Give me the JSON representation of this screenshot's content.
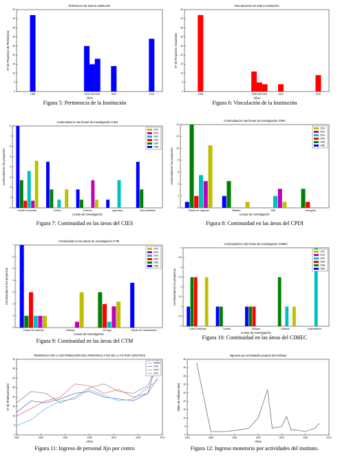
{
  "chart_data": [
    {
      "type": "bar",
      "title": "Pertinencia de toda la Institución",
      "xlabel": "Años",
      "ylabel": "Nº de Proyectos de Pertinencia",
      "caption": "Figura 5: Pertinencia de la Institución",
      "x": [
        1988,
        1998,
        1999,
        2000,
        2003,
        2010
      ],
      "values": [
        42,
        25,
        15,
        18,
        14,
        29
      ],
      "color": "#0000ff",
      "xlim": [
        1985,
        2012
      ],
      "xticks": [
        1988,
        1998,
        1999,
        2000,
        2003,
        2010
      ],
      "ylim": [
        0,
        45
      ],
      "yticks": [
        0,
        5,
        10,
        15,
        20,
        25,
        30,
        35,
        40,
        45
      ]
    },
    {
      "type": "bar",
      "title": "Vinculaciones de toda la Institución",
      "xlabel": "Años",
      "ylabel": "Nº de Proyectos Vinculados",
      "caption": "Figura 6: Vinculación de la Institución",
      "x": [
        1988,
        1998,
        1999,
        2000,
        2003,
        2010
      ],
      "values": [
        42,
        11,
        5,
        4,
        4,
        9
      ],
      "color": "#ff0000",
      "xlim": [
        1985,
        2012
      ],
      "xticks": [
        1988,
        1998,
        1999,
        2000,
        2003,
        2010
      ],
      "ylim": [
        0,
        45
      ],
      "yticks": [
        0,
        5,
        10,
        15,
        20,
        25,
        30,
        35,
        40,
        45
      ]
    },
    {
      "type": "bar",
      "title": "Continuidad en las lineas de investigación CIES",
      "xlabel": "Lineas de Investigación",
      "ylabel": "Continuidad en los proyectos",
      "caption": "Figura 7: Continuidad en las áreas del CIES",
      "categories": [
        "Estudio Económico",
        "Turismo",
        "Gerencia",
        "Agricultura",
        "Socio-ambiental"
      ],
      "legend": "upper right",
      "ylim": [
        0,
        8
      ],
      "yticks": [
        0,
        1,
        2,
        3,
        4,
        5,
        6,
        7,
        8
      ],
      "series": [
        {
          "name": "1988",
          "color": "#0000ff",
          "values": [
            8,
            4.5,
            1.8,
            0.8,
            4.5
          ]
        },
        {
          "name": "1998",
          "color": "#008000",
          "values": [
            2.7,
            1.8,
            0.8,
            0,
            1.8
          ]
        },
        {
          "name": "1999",
          "color": "#ff0000",
          "values": [
            0.7,
            0,
            0,
            0,
            0
          ]
        },
        {
          "name": "2000",
          "color": "#00bfbf",
          "values": [
            3.6,
            0.8,
            0,
            2.7,
            0
          ]
        },
        {
          "name": "2003",
          "color": "#bf00bf",
          "values": [
            0.7,
            0,
            2.7,
            0,
            0
          ]
        },
        {
          "name": "2010",
          "color": "#bfbf00",
          "values": [
            4.6,
            1.8,
            0.8,
            0,
            0
          ]
        }
      ]
    },
    {
      "type": "bar",
      "title": "Continuidad en las lineas de investigación CPDI",
      "xlabel": "Lineas de Investigación",
      "ylabel": "Continuidad en los proyectos",
      "caption": "Figura 8: Continuidad en las áreas del CPDI",
      "categories": [
        "Estudio de Imágenes",
        "Software",
        "Web",
        "Cartografía"
      ],
      "legend": "upper right",
      "ylim": [
        0,
        14
      ],
      "yticks": [
        0,
        2,
        4,
        6,
        8,
        10,
        12,
        14
      ],
      "series": [
        {
          "name": "1988",
          "color": "#0000ff",
          "values": [
            1,
            2,
            0,
            0
          ]
        },
        {
          "name": "1998",
          "color": "#008000",
          "values": [
            14,
            4.5,
            0,
            3.2
          ]
        },
        {
          "name": "1999",
          "color": "#ff0000",
          "values": [
            2,
            0,
            0,
            1
          ]
        },
        {
          "name": "2000",
          "color": "#00bfbf",
          "values": [
            5.5,
            0,
            2,
            0
          ]
        },
        {
          "name": "2003",
          "color": "#bf00bf",
          "values": [
            4.5,
            0,
            3.2,
            0
          ]
        },
        {
          "name": "2010",
          "color": "#bfbf00",
          "values": [
            10.5,
            1,
            1,
            0
          ]
        }
      ]
    },
    {
      "type": "bar",
      "title": "Continuidad en las lineas de investigación CTM",
      "xlabel": "Lineas de Investigación",
      "ylabel": "Continuidad en los proyectos",
      "caption": "Figura 9: Continuidad en las áreas del CTM",
      "categories": [
        "Estudio de Ambiente",
        "Software",
        "Ecología",
        "Estudio de Contaminación"
      ],
      "legend": "upper right",
      "ylim": [
        0,
        7
      ],
      "yticks": [
        0,
        1,
        2,
        3,
        4,
        5,
        6,
        7
      ],
      "series": [
        {
          "name": "1988",
          "color": "#0000ff",
          "values": [
            7,
            0,
            0,
            3.8
          ]
        },
        {
          "name": "1998",
          "color": "#008000",
          "values": [
            1,
            0,
            3,
            0
          ]
        },
        {
          "name": "1999",
          "color": "#ff0000",
          "values": [
            3,
            0,
            2,
            0
          ]
        },
        {
          "name": "2000",
          "color": "#00bfbf",
          "values": [
            1,
            0,
            0.5,
            0
          ]
        },
        {
          "name": "2003",
          "color": "#bf00bf",
          "values": [
            1,
            0.5,
            1.8,
            0
          ]
        },
        {
          "name": "2010",
          "color": "#bfbf00",
          "values": [
            1,
            3,
            2.2,
            0
          ]
        }
      ]
    },
    {
      "type": "bar",
      "title": "Continuidad en las lineas de investigación CIMEC",
      "xlabel": "Lineas de Investigación",
      "ylabel": "Continuidad en los proyectos",
      "caption": "Figura 10: Continuidad en las áreas del CIMEC",
      "categories": [
        "Control Ambiental",
        "Gestión",
        "Biología",
        "Software",
        "Sostenibilidad"
      ],
      "legend": "upper right",
      "ylim": [
        0,
        4
      ],
      "yticks": [
        0,
        0.5,
        1,
        1.5,
        2,
        2.5,
        3,
        3.5,
        4
      ],
      "series": [
        {
          "name": "1988",
          "color": "#0000ff",
          "values": [
            1,
            1,
            1,
            0,
            0
          ]
        },
        {
          "name": "1998",
          "color": "#008000",
          "values": [
            2.5,
            1,
            1,
            2.5,
            0
          ]
        },
        {
          "name": "1999",
          "color": "#ff0000",
          "values": [
            2.5,
            0,
            1,
            0,
            0
          ]
        },
        {
          "name": "2000",
          "color": "#00bfbf",
          "values": [
            0,
            0,
            0,
            1,
            4
          ]
        },
        {
          "name": "2003",
          "color": "#bf00bf",
          "values": [
            0,
            0,
            0,
            0,
            0
          ]
        },
        {
          "name": "2010",
          "color": "#bfbf00",
          "values": [
            2.5,
            0,
            0,
            1,
            0
          ]
        }
      ]
    },
    {
      "type": "line",
      "title": "TENDENCIA DE LA DISTRIBUCIÓN DEL PERSONAL FIJO DE LA FII POR CENTROS",
      "xlabel": "Años",
      "ylabel": "Nº de Profesores/año",
      "caption": "Figura 11: Ingreso de personal fijo por centro",
      "legend": "upper right",
      "x": [
        1980,
        1983,
        1986,
        1989,
        1992,
        1995,
        1998,
        2001,
        2004,
        2007,
        2009
      ],
      "xlim": [
        1980,
        2010
      ],
      "xticks": [
        1980,
        1985,
        1990,
        1995,
        2000,
        2005,
        2010
      ],
      "ylim": [
        0,
        40
      ],
      "yticks": [
        0,
        5,
        10,
        15,
        20,
        25,
        30,
        35,
        40
      ],
      "series": [
        {
          "name": "CIES",
          "color": "#909090",
          "values": [
            17,
            23,
            22,
            17,
            20,
            25,
            27,
            23,
            22,
            26,
            38
          ]
        },
        {
          "name": "CPDI",
          "color": "#e07070",
          "values": [
            10,
            14,
            18,
            20,
            27,
            26,
            22,
            24,
            20,
            22,
            30
          ]
        },
        {
          "name": "CTM",
          "color": "#6070d0",
          "values": [
            12,
            18,
            17,
            19,
            22,
            23,
            20,
            19,
            18,
            22,
            40
          ]
        },
        {
          "name": "CIMEC",
          "color": "#70c0e0",
          "values": [
            5,
            8,
            14,
            18,
            19,
            24,
            21,
            18,
            19,
            25,
            29
          ]
        }
      ]
    },
    {
      "type": "line",
      "title": "Ingresos por actividades propias del Instituto",
      "xlabel": "Años",
      "ylabel": "Miles de Millones (Bs)",
      "caption": "Figura 12: Ingreso monetario por actividades del instituto.",
      "x": [
        1982,
        1985,
        1988,
        1991,
        1993,
        1995,
        1997,
        1998,
        2000,
        2001,
        2002,
        2003,
        2005,
        2007,
        2008
      ],
      "xlim": [
        1980,
        2010
      ],
      "xticks": [
        1980,
        1985,
        1990,
        1995,
        2000,
        2005,
        2010
      ],
      "ylim": [
        0,
        45
      ],
      "yticks": [
        0,
        5,
        10,
        15,
        20,
        25,
        30,
        35,
        40,
        45
      ],
      "series": [
        {
          "name": "Ingresos",
          "color": "#707070",
          "values": [
            43,
            2,
            2,
            3,
            4,
            10,
            27,
            4,
            5,
            11,
            3,
            3,
            2,
            4,
            7
          ]
        }
      ]
    }
  ]
}
